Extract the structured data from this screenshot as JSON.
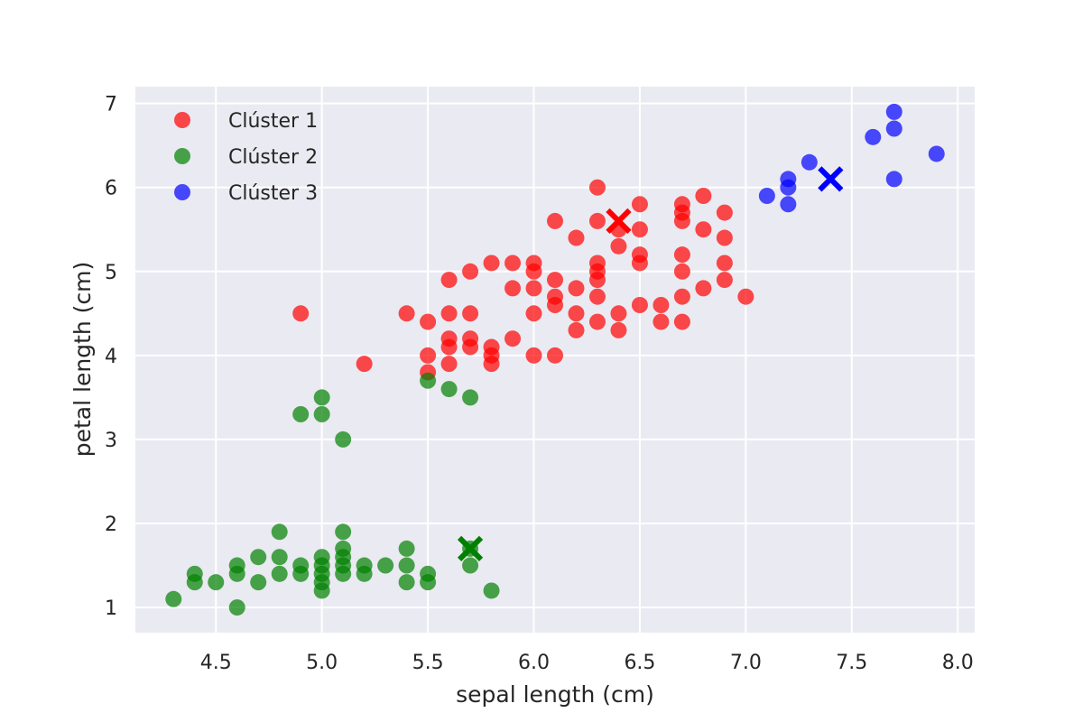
{
  "chart_data": {
    "type": "scatter",
    "xlabel": "sepal length (cm)",
    "ylabel": "petal length (cm)",
    "xlim": [
      4.12,
      8.08
    ],
    "ylim": [
      0.7,
      7.2
    ],
    "xticks": [
      4.5,
      5.0,
      5.5,
      6.0,
      6.5,
      7.0,
      7.5,
      8.0
    ],
    "xtick_labels": [
      "4.5",
      "5.0",
      "5.5",
      "6.0",
      "6.5",
      "7.0",
      "7.5",
      "8.0"
    ],
    "yticks": [
      1,
      2,
      3,
      4,
      5,
      6,
      7
    ],
    "ytick_labels": [
      "1",
      "2",
      "3",
      "4",
      "5",
      "6",
      "7"
    ],
    "grid": true,
    "legend_position": "top-left",
    "background_color": "#eaeaf2",
    "series": [
      {
        "name": "Clúster 1",
        "color": "#ff0000",
        "points": [
          [
            4.9,
            4.5
          ],
          [
            5.2,
            3.9
          ],
          [
            5.4,
            4.5
          ],
          [
            5.5,
            4.4
          ],
          [
            5.5,
            4.0
          ],
          [
            5.5,
            3.8
          ],
          [
            5.6,
            4.9
          ],
          [
            5.6,
            4.5
          ],
          [
            5.6,
            4.2
          ],
          [
            5.6,
            4.1
          ],
          [
            5.6,
            3.9
          ],
          [
            5.7,
            5.0
          ],
          [
            5.7,
            4.5
          ],
          [
            5.7,
            4.2
          ],
          [
            5.7,
            4.1
          ],
          [
            5.8,
            5.1
          ],
          [
            5.8,
            4.1
          ],
          [
            5.8,
            4.0
          ],
          [
            5.8,
            3.9
          ],
          [
            5.9,
            5.1
          ],
          [
            5.9,
            4.8
          ],
          [
            5.9,
            4.2
          ],
          [
            6.0,
            5.1
          ],
          [
            6.0,
            5.0
          ],
          [
            6.0,
            4.8
          ],
          [
            6.0,
            4.5
          ],
          [
            6.0,
            4.0
          ],
          [
            6.1,
            5.6
          ],
          [
            6.1,
            4.9
          ],
          [
            6.1,
            4.7
          ],
          [
            6.1,
            4.6
          ],
          [
            6.1,
            4.0
          ],
          [
            6.2,
            5.4
          ],
          [
            6.2,
            4.8
          ],
          [
            6.2,
            4.5
          ],
          [
            6.2,
            4.3
          ],
          [
            6.3,
            6.0
          ],
          [
            6.3,
            5.6
          ],
          [
            6.3,
            5.1
          ],
          [
            6.3,
            5.0
          ],
          [
            6.3,
            4.9
          ],
          [
            6.3,
            4.7
          ],
          [
            6.3,
            4.4
          ],
          [
            6.4,
            5.5
          ],
          [
            6.4,
            5.3
          ],
          [
            6.4,
            4.5
          ],
          [
            6.4,
            4.3
          ],
          [
            6.5,
            5.8
          ],
          [
            6.5,
            5.5
          ],
          [
            6.5,
            5.2
          ],
          [
            6.5,
            5.1
          ],
          [
            6.5,
            4.6
          ],
          [
            6.6,
            4.6
          ],
          [
            6.6,
            4.4
          ],
          [
            6.7,
            5.8
          ],
          [
            6.7,
            5.7
          ],
          [
            6.7,
            5.6
          ],
          [
            6.7,
            5.2
          ],
          [
            6.7,
            5.0
          ],
          [
            6.7,
            4.7
          ],
          [
            6.7,
            4.4
          ],
          [
            6.8,
            5.9
          ],
          [
            6.8,
            5.5
          ],
          [
            6.8,
            4.8
          ],
          [
            6.9,
            5.7
          ],
          [
            6.9,
            5.4
          ],
          [
            6.9,
            5.1
          ],
          [
            6.9,
            4.9
          ],
          [
            7.0,
            4.7
          ]
        ],
        "centroid": [
          6.4,
          5.6
        ]
      },
      {
        "name": "Clúster 2",
        "color": "#008000",
        "points": [
          [
            4.3,
            1.1
          ],
          [
            4.4,
            1.4
          ],
          [
            4.4,
            1.3
          ],
          [
            4.5,
            1.3
          ],
          [
            4.6,
            1.5
          ],
          [
            4.6,
            1.4
          ],
          [
            4.6,
            1.0
          ],
          [
            4.7,
            1.6
          ],
          [
            4.7,
            1.3
          ],
          [
            4.8,
            1.9
          ],
          [
            4.8,
            1.6
          ],
          [
            4.8,
            1.4
          ],
          [
            4.9,
            3.3
          ],
          [
            4.9,
            1.5
          ],
          [
            4.9,
            1.4
          ],
          [
            5.0,
            3.5
          ],
          [
            5.0,
            3.3
          ],
          [
            5.0,
            1.6
          ],
          [
            5.0,
            1.5
          ],
          [
            5.0,
            1.4
          ],
          [
            5.0,
            1.3
          ],
          [
            5.0,
            1.2
          ],
          [
            5.1,
            3.0
          ],
          [
            5.1,
            1.9
          ],
          [
            5.1,
            1.7
          ],
          [
            5.1,
            1.6
          ],
          [
            5.1,
            1.5
          ],
          [
            5.1,
            1.4
          ],
          [
            5.2,
            1.5
          ],
          [
            5.2,
            1.4
          ],
          [
            5.3,
            1.5
          ],
          [
            5.4,
            1.7
          ],
          [
            5.4,
            1.5
          ],
          [
            5.4,
            1.3
          ],
          [
            5.5,
            3.7
          ],
          [
            5.5,
            1.4
          ],
          [
            5.5,
            1.3
          ],
          [
            5.6,
            3.6
          ],
          [
            5.7,
            3.5
          ],
          [
            5.7,
            1.7
          ],
          [
            5.7,
            1.5
          ],
          [
            5.8,
            1.2
          ]
        ],
        "centroid": [
          5.7,
          1.7
        ]
      },
      {
        "name": "Clúster 3",
        "color": "#0000ff",
        "points": [
          [
            7.1,
            5.9
          ],
          [
            7.2,
            6.1
          ],
          [
            7.2,
            6.0
          ],
          [
            7.2,
            5.8
          ],
          [
            7.3,
            6.3
          ],
          [
            7.6,
            6.6
          ],
          [
            7.7,
            6.9
          ],
          [
            7.7,
            6.7
          ],
          [
            7.7,
            6.1
          ],
          [
            7.9,
            6.4
          ]
        ],
        "centroid": [
          7.4,
          6.1
        ]
      }
    ]
  }
}
